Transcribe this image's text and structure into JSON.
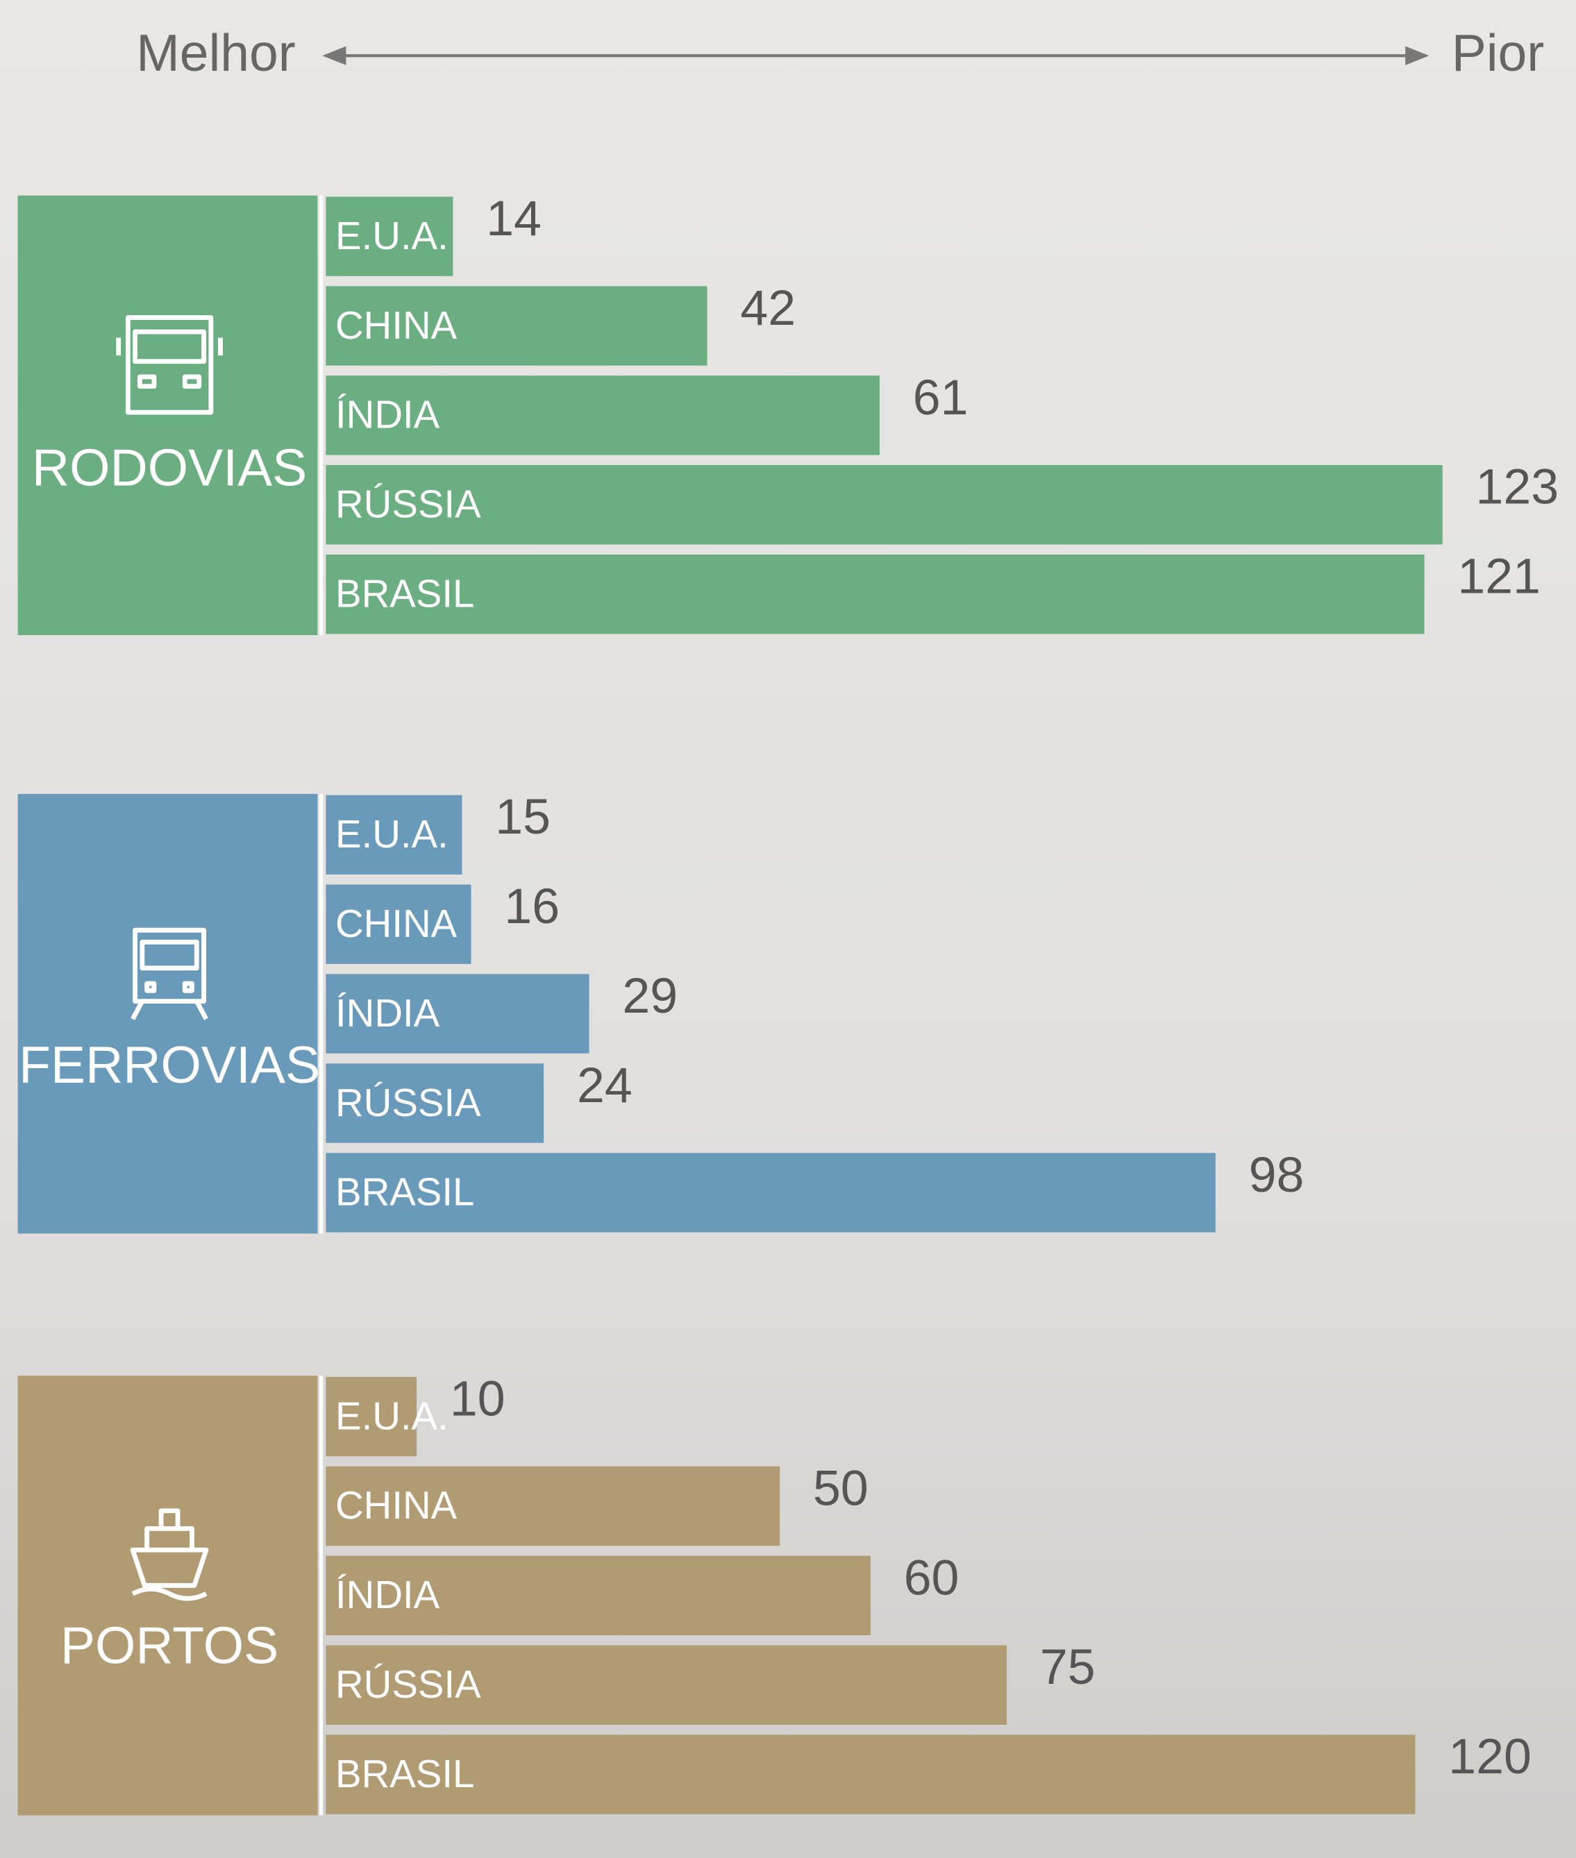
{
  "header": {
    "better": "Melhor",
    "worse": "Pior"
  },
  "chart_data": [
    {
      "type": "bar",
      "orientation": "horizontal",
      "title": "RODOVIAS",
      "color": "#6aae82",
      "categories": [
        "E.U.A.",
        "CHINA",
        "ÍNDIA",
        "RÚSSIA",
        "BRASIL"
      ],
      "values": [
        14,
        42,
        61,
        123,
        121
      ],
      "xlim": [
        0,
        124
      ]
    },
    {
      "type": "bar",
      "orientation": "horizontal",
      "title": "FERROVIAS",
      "color": "#6a9aba",
      "categories": [
        "E.U.A.",
        "CHINA",
        "ÍNDIA",
        "RÚSSIA",
        "BRASIL"
      ],
      "values": [
        15,
        16,
        29,
        24,
        98
      ],
      "xlim": [
        0,
        124
      ]
    },
    {
      "type": "bar",
      "orientation": "horizontal",
      "title": "PORTOS",
      "color": "#b09b72",
      "categories": [
        "E.U.A.",
        "CHINA",
        "ÍNDIA",
        "RÚSSIA",
        "BRASIL"
      ],
      "values": [
        10,
        50,
        60,
        75,
        120
      ],
      "xlim": [
        0,
        124
      ]
    }
  ]
}
